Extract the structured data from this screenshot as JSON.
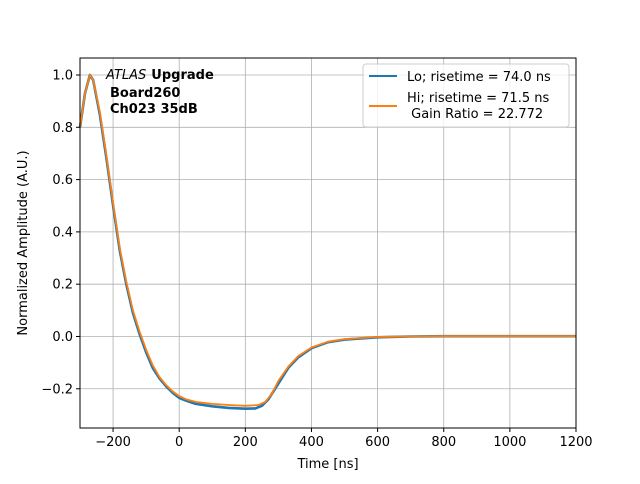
{
  "chart_data": {
    "type": "line",
    "title": "",
    "xlabel": "Time [ns]",
    "ylabel": "Normalized Amplitude (A.U.)",
    "xlim": [
      -300,
      1200
    ],
    "ylim": [
      -0.35,
      1.065
    ],
    "xticks": [
      -200,
      0,
      200,
      400,
      600,
      800,
      1000,
      1200
    ],
    "xtick_labels": [
      "−200",
      "0",
      "200",
      "400",
      "600",
      "800",
      "1000",
      "1200"
    ],
    "yticks": [
      -0.2,
      0.0,
      0.2,
      0.4,
      0.6,
      0.8,
      1.0
    ],
    "ytick_labels": [
      "−0.2",
      "0.0",
      "0.2",
      "0.4",
      "0.6",
      "0.8",
      "1.0"
    ],
    "grid": true,
    "legend_position": "top-right",
    "annotation": {
      "italic": "ATLAS",
      "bold": "Upgrade",
      "line2": "Board260",
      "line3": "Ch023 35dB"
    },
    "series": [
      {
        "name": "Lo; risetime = 74.0 ns",
        "color": "#1f77b4",
        "x": [
          -300,
          -285,
          -270,
          -260,
          -240,
          -220,
          -200,
          -180,
          -160,
          -140,
          -120,
          -100,
          -80,
          -60,
          -40,
          -20,
          0,
          20,
          50,
          100,
          150,
          200,
          230,
          250,
          270,
          300,
          330,
          360,
          400,
          450,
          500,
          600,
          700,
          800,
          1200
        ],
        "y": [
          0.8,
          0.93,
          1.0,
          0.98,
          0.85,
          0.68,
          0.5,
          0.33,
          0.2,
          0.09,
          0.01,
          -0.06,
          -0.12,
          -0.16,
          -0.19,
          -0.215,
          -0.235,
          -0.245,
          -0.258,
          -0.267,
          -0.273,
          -0.276,
          -0.275,
          -0.265,
          -0.24,
          -0.18,
          -0.12,
          -0.08,
          -0.045,
          -0.022,
          -0.012,
          -0.003,
          0.0,
          0.001,
          0.001
        ]
      },
      {
        "name": "Hi; risetime = 71.5 ns\n Gain Ratio = 22.772",
        "color": "#ff7f0e",
        "x": [
          -300,
          -285,
          -270,
          -260,
          -240,
          -220,
          -200,
          -180,
          -160,
          -140,
          -120,
          -100,
          -80,
          -60,
          -40,
          -20,
          0,
          20,
          50,
          100,
          150,
          200,
          240,
          260,
          280,
          300,
          330,
          360,
          400,
          450,
          500,
          600,
          700,
          800,
          1200
        ],
        "y": [
          0.8,
          0.93,
          1.0,
          0.98,
          0.86,
          0.69,
          0.51,
          0.34,
          0.21,
          0.1,
          0.02,
          -0.05,
          -0.11,
          -0.155,
          -0.185,
          -0.21,
          -0.228,
          -0.24,
          -0.25,
          -0.258,
          -0.262,
          -0.265,
          -0.262,
          -0.25,
          -0.22,
          -0.17,
          -0.115,
          -0.075,
          -0.042,
          -0.02,
          -0.01,
          -0.002,
          0.0,
          0.001,
          0.001
        ]
      }
    ],
    "legend_labels": [
      "Lo; risetime = 74.0 ns",
      "Hi; risetime = 71.5 ns",
      " Gain Ratio = 22.772"
    ]
  }
}
